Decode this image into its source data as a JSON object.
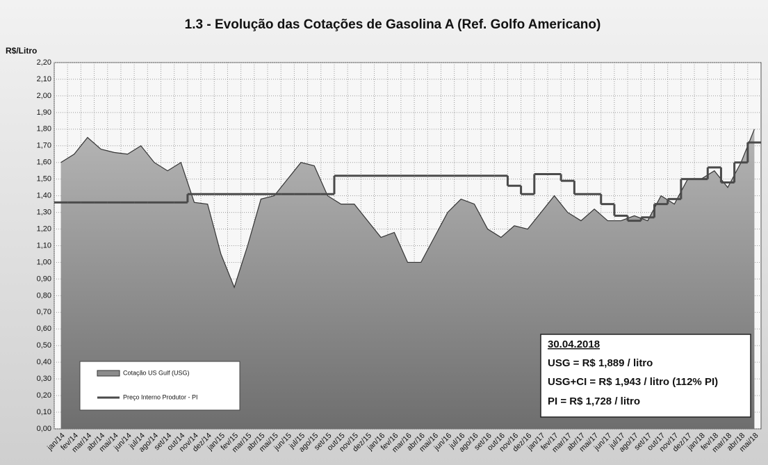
{
  "chart_data": {
    "type": "line",
    "title": "1.3 - Evolução das Cotações de Gasolina A (Ref. Golfo Americano)",
    "y_label": "R$/Litro",
    "categories": [
      "jan/14",
      "fev/14",
      "mar/14",
      "abr/14",
      "mai/14",
      "jun/14",
      "jul/14",
      "ago/14",
      "set/14",
      "out/14",
      "nov/14",
      "dez/14",
      "jan/15",
      "fev/15",
      "mar/15",
      "abr/15",
      "mai/15",
      "jun/15",
      "jul/15",
      "ago/15",
      "set/15",
      "out/15",
      "nov/15",
      "dez/15",
      "jan/16",
      "fev/16",
      "mar/16",
      "abr/16",
      "mai/16",
      "jun/16",
      "jul/16",
      "ago/16",
      "set/16",
      "out/16",
      "nov/16",
      "dez/16",
      "jan/17",
      "fev/17",
      "mar/17",
      "abr/17",
      "mai/17",
      "jun/17",
      "jul/17",
      "ago/17",
      "set/17",
      "out/17",
      "nov/17",
      "dez/17",
      "jan/18",
      "fev/18",
      "mar/18",
      "abr/18",
      "mai/18"
    ],
    "series": [
      {
        "name": "Cotação US Gulf (USG)",
        "style": "area",
        "color": "#8c8c8c",
        "values": [
          1.6,
          1.65,
          1.75,
          1.68,
          1.66,
          1.65,
          1.7,
          1.6,
          1.55,
          1.6,
          1.36,
          1.35,
          1.05,
          0.85,
          1.1,
          1.38,
          1.4,
          1.5,
          1.6,
          1.58,
          1.4,
          1.35,
          1.35,
          1.25,
          1.15,
          1.18,
          1.0,
          1.0,
          1.15,
          1.3,
          1.38,
          1.35,
          1.2,
          1.15,
          1.22,
          1.2,
          1.3,
          1.4,
          1.3,
          1.25,
          1.32,
          1.25,
          1.25,
          1.28,
          1.25,
          1.4,
          1.35,
          1.5,
          1.5,
          1.55,
          1.45,
          1.6,
          1.8
        ]
      },
      {
        "name": "Preço Interno Produtor - PI",
        "style": "step",
        "color": "#4a4a4a",
        "values": [
          1.36,
          1.36,
          1.36,
          1.36,
          1.36,
          1.36,
          1.36,
          1.36,
          1.36,
          1.36,
          1.41,
          1.41,
          1.41,
          1.41,
          1.41,
          1.41,
          1.41,
          1.41,
          1.41,
          1.41,
          1.41,
          1.52,
          1.52,
          1.52,
          1.52,
          1.52,
          1.52,
          1.52,
          1.52,
          1.52,
          1.52,
          1.52,
          1.52,
          1.52,
          1.46,
          1.41,
          1.53,
          1.53,
          1.49,
          1.41,
          1.41,
          1.35,
          1.28,
          1.25,
          1.27,
          1.35,
          1.38,
          1.5,
          1.5,
          1.57,
          1.48,
          1.6,
          1.72
        ]
      }
    ],
    "ylim": [
      0,
      2.2
    ],
    "yticks": [
      {
        "value": 0,
        "label": "0,00"
      },
      {
        "value": 0.1,
        "label": "0,10"
      },
      {
        "value": 0.2,
        "label": "0,20"
      },
      {
        "value": 0.3,
        "label": "0,30"
      },
      {
        "value": 0.4,
        "label": "0,40"
      },
      {
        "value": 0.5,
        "label": "0,50"
      },
      {
        "value": 0.6,
        "label": "0,60"
      },
      {
        "value": 0.7,
        "label": "0,70"
      },
      {
        "value": 0.8,
        "label": "0,80"
      },
      {
        "value": 0.9,
        "label": "0,90"
      },
      {
        "value": 1.0,
        "label": "1,00"
      },
      {
        "value": 1.1,
        "label": "1,10"
      },
      {
        "value": 1.2,
        "label": "1,20"
      },
      {
        "value": 1.3,
        "label": "1,30"
      },
      {
        "value": 1.4,
        "label": "1,40"
      },
      {
        "value": 1.5,
        "label": "1,50"
      },
      {
        "value": 1.6,
        "label": "1,60"
      },
      {
        "value": 1.7,
        "label": "1,70"
      },
      {
        "value": 1.8,
        "label": "1,80"
      },
      {
        "value": 1.9,
        "label": "1,90"
      },
      {
        "value": 2.0,
        "label": "2,00"
      },
      {
        "value": 2.1,
        "label": "2,10"
      },
      {
        "value": 2.2,
        "label": "2,20"
      }
    ],
    "grid": true,
    "legend": "lower-left",
    "annotation": {
      "date": "30.04.2018",
      "lines": [
        "USG = R$ 1,889 / litro",
        "USG+CI  = R$ 1,943 / litro (112% PI)",
        "PI = R$ 1,728 / litro"
      ]
    }
  }
}
